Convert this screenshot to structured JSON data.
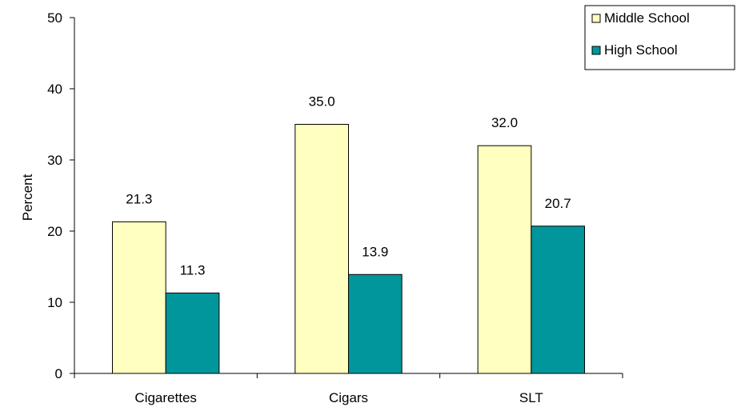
{
  "chart_data": {
    "type": "bar",
    "title": "",
    "xlabel": "",
    "ylabel": "Percent",
    "ylim": [
      0,
      50
    ],
    "yticks": [
      0,
      10,
      20,
      30,
      40,
      50
    ],
    "categories": [
      "Cigarettes",
      "Cigars",
      "SLT"
    ],
    "series": [
      {
        "name": "Middle School",
        "values": [
          21.3,
          35.0,
          32.0
        ],
        "labels": [
          "21.3",
          "35.0",
          "32.0"
        ],
        "color": "#FFFFC0"
      },
      {
        "name": "High School",
        "values": [
          11.3,
          13.9,
          20.7
        ],
        "labels": [
          "11.3",
          "13.9",
          "20.7"
        ],
        "color": "#00969B"
      }
    ],
    "legend_position": "top-right",
    "grid": false
  }
}
